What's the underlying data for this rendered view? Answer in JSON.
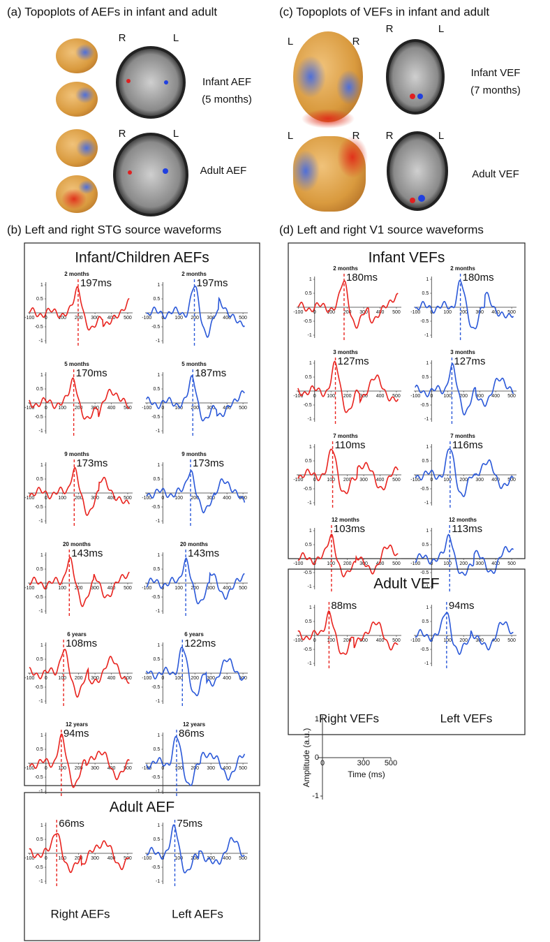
{
  "panel_a": {
    "title": "(a) Topoplots of AEFs in infant and adult",
    "infant": {
      "hemis": [
        "R",
        "L"
      ],
      "label": "Infant AEF",
      "sublabel": "(5 months)"
    },
    "adult": {
      "hemis": [
        "R",
        "L"
      ],
      "label": "Adult AEF"
    }
  },
  "panel_c": {
    "title": "(c) Topoplots of VEFs in infant and adult",
    "infant": {
      "head_hemis": [
        "L",
        "R"
      ],
      "mri_hemis": [
        "R",
        "L"
      ],
      "label": "Infant VEF",
      "sublabel": "(7 months)"
    },
    "adult": {
      "head_hemis": [
        "L",
        "R"
      ],
      "mri_hemis": [
        "R",
        "L"
      ],
      "label": "Adult VEF"
    }
  },
  "panel_b": {
    "title": "(b) Left and right STG source waveforms",
    "xticks": [
      -100,
      0,
      100,
      200,
      300,
      400,
      500
    ],
    "yticks": [
      1,
      0.5,
      -0.5,
      -1
    ],
    "xlim": [
      -110,
      530
    ],
    "ylim": [
      -1.1,
      1.1
    ],
    "columns": [
      "Right AEFs",
      "Left AEFs"
    ],
    "boxes": [
      {
        "title": "Infant/Children AEFs",
        "rows": [
          {
            "age": "2 months",
            "right": {
              "latency": 197,
              "label": "197ms"
            },
            "left": {
              "latency": 197,
              "label": "197ms"
            }
          },
          {
            "age": "5 months",
            "right": {
              "latency": 170,
              "label": "170ms"
            },
            "left": {
              "latency": 187,
              "label": "187ms"
            }
          },
          {
            "age": "9 months",
            "right": {
              "latency": 173,
              "label": "173ms"
            },
            "left": {
              "latency": 173,
              "label": "173ms"
            }
          },
          {
            "age": "20 months",
            "right": {
              "latency": 143,
              "label": "143ms"
            },
            "left": {
              "latency": 143,
              "label": "143ms"
            }
          },
          {
            "age": "6 years",
            "right": {
              "latency": 108,
              "label": "108ms"
            },
            "left": {
              "latency": 122,
              "label": "122ms"
            }
          },
          {
            "age": "12 years",
            "right": {
              "latency": 94,
              "label": "94ms"
            },
            "left": {
              "latency": 86,
              "label": "86ms"
            }
          }
        ]
      },
      {
        "title": "Adult AEF",
        "rows": [
          {
            "right": {
              "latency": 66,
              "label": "66ms"
            },
            "left": {
              "latency": 75,
              "label": "75ms"
            }
          }
        ]
      }
    ]
  },
  "panel_d": {
    "title": "(d) Left and right V1 source waveforms",
    "xticks": [
      -100,
      0,
      100,
      200,
      300,
      400,
      500
    ],
    "yticks": [
      1,
      0.5,
      -0.5,
      -1
    ],
    "xlim": [
      -110,
      530
    ],
    "ylim": [
      -1.1,
      1.1
    ],
    "columns": [
      "Right VEFs",
      "Left VEFs"
    ],
    "boxes": [
      {
        "title": "Infant VEFs",
        "rows": [
          {
            "age": "2 months",
            "right": {
              "latency": 180,
              "label": "180ms"
            },
            "left": {
              "latency": 180,
              "label": "180ms"
            }
          },
          {
            "age": "3 months",
            "right": {
              "latency": 127,
              "label": "127ms"
            },
            "left": {
              "latency": 127,
              "label": "127ms"
            }
          },
          {
            "age": "7 months",
            "right": {
              "latency": 110,
              "label": "110ms"
            },
            "left": {
              "latency": 116,
              "label": "116ms"
            }
          },
          {
            "age": "12 months",
            "right": {
              "latency": 103,
              "label": "103ms"
            },
            "left": {
              "latency": 113,
              "label": "113ms"
            }
          }
        ]
      },
      {
        "title": "Adult VEF",
        "rows": [
          {
            "right": {
              "latency": 88,
              "label": "88ms"
            },
            "left": {
              "latency": 94,
              "label": "94ms"
            }
          }
        ]
      }
    ]
  },
  "legend": {
    "ylabel": "Amplitude (a.u.)",
    "xlabel": "Time (ms)",
    "xticks": [
      0,
      300,
      500
    ],
    "yticks": [
      1,
      0,
      -1
    ]
  }
}
